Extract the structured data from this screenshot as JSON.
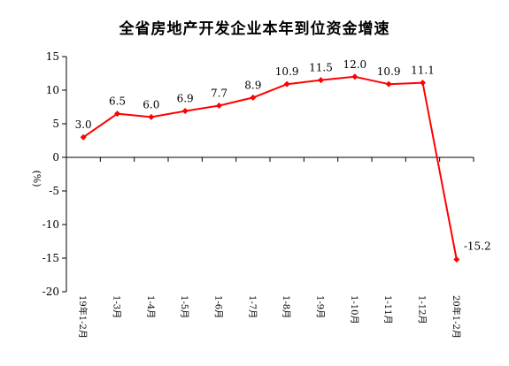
{
  "chart_data": {
    "type": "line",
    "title": "全省房地产开发企业本年到位资金增速",
    "ylabel": "(%)",
    "xlabel": "",
    "categories": [
      "19年1-2月",
      "1-3月",
      "1-4月",
      "1-5月",
      "1-6月",
      "1-7月",
      "1-8月",
      "1-9月",
      "1-10月",
      "1-11月",
      "1-12月",
      "20年1-2月"
    ],
    "values": [
      3.0,
      6.5,
      6.0,
      6.9,
      7.7,
      8.9,
      10.9,
      11.5,
      12.0,
      10.9,
      11.1,
      -15.2
    ],
    "data_labels": [
      "3.0",
      "6.5",
      "6.0",
      "6.9",
      "7.7",
      "8.9",
      "10.9",
      "11.5",
      "12.0",
      "10.9",
      "11.1",
      "-15.2"
    ],
    "ylim": [
      -20,
      15
    ],
    "yticks": [
      15,
      10,
      5,
      0,
      -5,
      -10,
      -15,
      -20
    ],
    "ytick_labels": [
      "15",
      "10",
      "5",
      "0",
      "-5",
      "-10",
      "-15",
      "-20"
    ],
    "grid": false,
    "legend": "none",
    "line_color": "#ff0000",
    "marker": "diamond"
  }
}
